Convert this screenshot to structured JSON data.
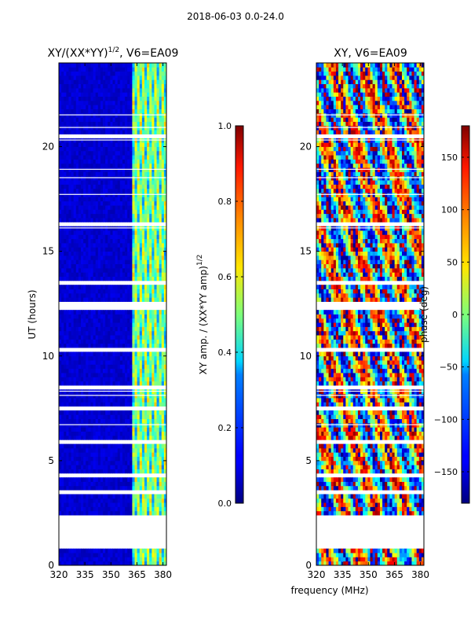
{
  "suptitle": "2018-06-03 0.0-24.0",
  "chart_data": [
    {
      "type": "heatmap",
      "title_base": "XY/(XX*YY)",
      "title_exp": "1/2",
      "title_suffix": ", V6=EA09",
      "xlabel": "",
      "ylabel": "UT (hours)",
      "xlim": [
        320,
        382
      ],
      "ylim": [
        0,
        24
      ],
      "xticks": [
        320,
        335,
        350,
        365,
        380
      ],
      "yticks": [
        0,
        5,
        10,
        15,
        20
      ],
      "colorbar": {
        "label_base": "XY amp. / (XX*YY amp)",
        "label_exp": "1/2",
        "range": [
          0.0,
          1.0
        ],
        "ticks": [
          "0.0",
          "0.2",
          "0.4",
          "0.6",
          "0.8",
          "1.0"
        ],
        "colormap": "jet"
      },
      "notes": "Mostly low (~0.05) amplitude below 362 MHz; elevated 0.3-0.7 values in channels ~362-382 MHz; data gaps (white) at several times including 0.8-2.4 h and 12.3-12.7 h."
    },
    {
      "type": "heatmap",
      "title": "XY, V6=EA09",
      "xlabel": "frequency (MHz)",
      "ylabel": "",
      "xlim": [
        320,
        382
      ],
      "ylim": [
        0,
        24
      ],
      "xticks": [
        320,
        335,
        350,
        365,
        380
      ],
      "yticks": [
        0,
        5,
        10,
        15,
        20
      ],
      "colorbar": {
        "label": "phase (deg)",
        "range": [
          -180,
          180
        ],
        "ticks": [
          "−150",
          "−100",
          "−50",
          "0",
          "50",
          "100",
          "150"
        ],
        "colormap": "jet"
      },
      "notes": "Phase values span the full -180 to 180 deg range with strong variation across frequency and time; same data gaps as amplitude panel."
    }
  ],
  "tick_labels": {
    "x": [
      "320",
      "335",
      "350",
      "365",
      "380"
    ],
    "y": [
      "0",
      "5",
      "10",
      "15",
      "20"
    ]
  }
}
